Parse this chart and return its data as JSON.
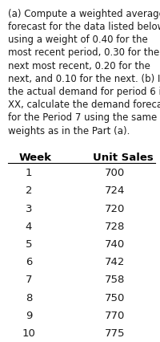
{
  "paragraph_lines": [
    "(a) Compute a weighted average",
    "forecast for the data listed below",
    "using a weight of 0.40 for the",
    "most recent period, 0.30 for the",
    "next most recent, 0.20 for the",
    "next, and 0.10 for the next. (b) If",
    "the actual demand for period 6 is",
    "XX, calculate the demand forecast",
    "for the Period 7 using the same",
    "weights as in the Part (a)."
  ],
  "col_headers": [
    "Week",
    "Unit Sales"
  ],
  "weeks": [
    1,
    2,
    3,
    4,
    5,
    6,
    7,
    8,
    9,
    10
  ],
  "unit_sales": [
    700,
    724,
    720,
    728,
    740,
    742,
    758,
    750,
    770,
    775
  ],
  "bg_color": "#ffffff",
  "text_color": "#1a1a1a",
  "header_color": "#000000",
  "line_color": "#000000",
  "font_size_para": 8.5,
  "font_size_header": 9.5,
  "font_size_data": 9.5
}
